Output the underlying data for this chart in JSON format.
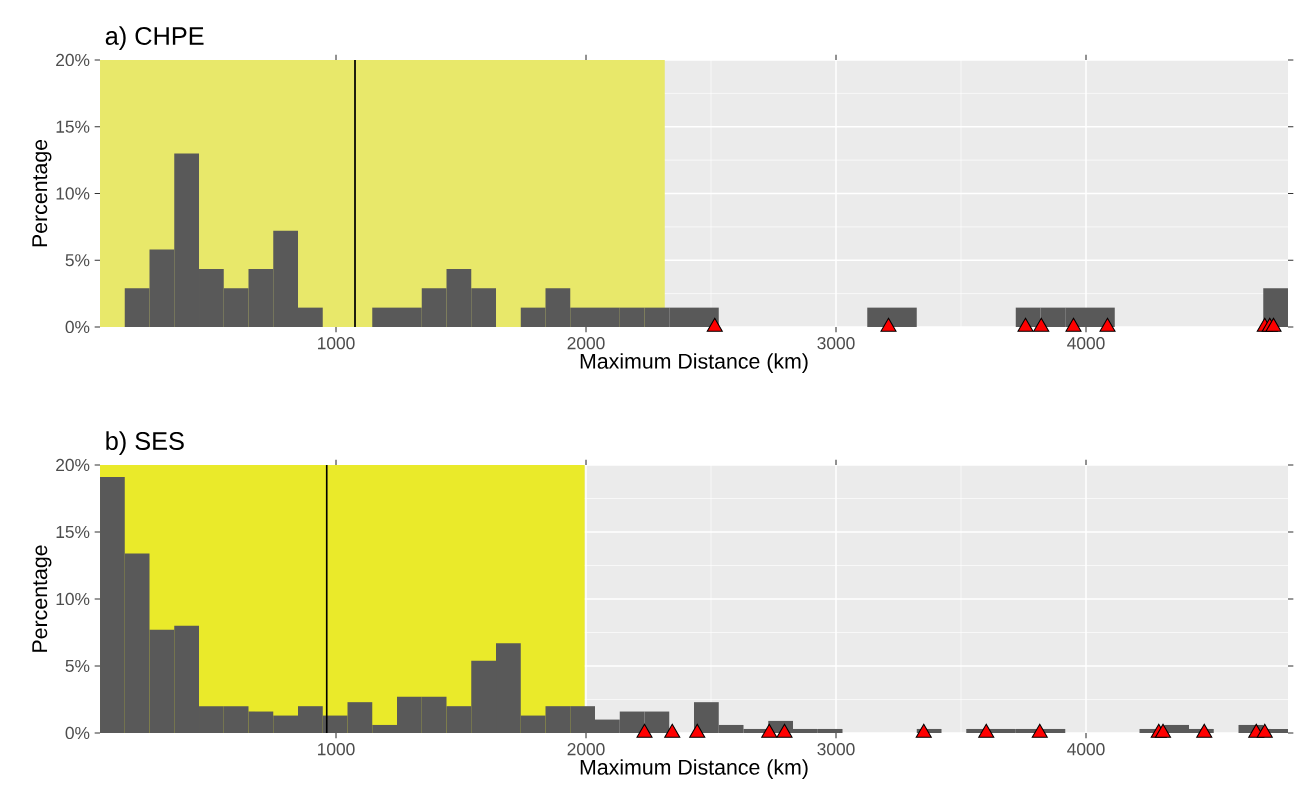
{
  "chart_data": [
    {
      "type": "histogram",
      "title": "a) CHPE",
      "xlabel": "Maximum Distance (km)",
      "ylabel": "Percentage",
      "color": "#595959",
      "bins": [
        56,
        155,
        254,
        353,
        452,
        551,
        650,
        749,
        848,
        947,
        1046,
        1145,
        1244,
        1343,
        1442,
        1541,
        1640,
        1739,
        1838,
        1937,
        2036,
        2135,
        2234,
        2333,
        2432,
        2531,
        2630,
        2729,
        2828,
        2927,
        3026,
        3125,
        3224,
        3323,
        3422,
        3521,
        3620,
        3719,
        3818,
        3917,
        4016,
        4115,
        4214,
        4313,
        4412,
        4511,
        4610,
        4709,
        4808
      ],
      "values": [
        0,
        2.9,
        5.8,
        13,
        4.35,
        2.9,
        4.35,
        7.2,
        1.45,
        0,
        0,
        1.45,
        1.45,
        2.9,
        4.35,
        2.9,
        0,
        1.45,
        2.9,
        1.45,
        1.45,
        1.45,
        1.45,
        1.45,
        1.45,
        0,
        0,
        0,
        0,
        0,
        0,
        1.45,
        1.45,
        0,
        0,
        0,
        0,
        1.45,
        1.45,
        1.45,
        1.45,
        0,
        0,
        0,
        0,
        0,
        0,
        2.9
      ],
      "series": [
        {
          "type": "scatter",
          "color": "#ff0000",
          "x": [
            2515,
            3210,
            3758,
            3821,
            3950,
            4086,
            4715,
            4735,
            4750
          ],
          "values": [
            0,
            0,
            0,
            0,
            0,
            0,
            0,
            0,
            0
          ]
        }
      ],
      "marker": "triangle",
      "ref_lines": [
        {
          "axis": "x",
          "value": 1076,
          "color": "#000000"
        }
      ],
      "bands": [
        {
          "axis": "x",
          "from": 56,
          "to": 2315,
          "color": "#e8e86a"
        }
      ],
      "xlim": [
        56,
        4808
      ],
      "xticks": [
        1000,
        2000,
        3000,
        4000
      ],
      "ylim": [
        0,
        20
      ],
      "yticks": [
        {
          "value": 0,
          "label": "0%"
        },
        {
          "value": 5,
          "label": "5%"
        },
        {
          "value": 10,
          "label": "10%"
        },
        {
          "value": 15,
          "label": "15%"
        },
        {
          "value": 20,
          "label": "20%"
        }
      ],
      "grid": true
    },
    {
      "type": "histogram",
      "title": "b) SES",
      "xlabel": "Maximum Distance (km)",
      "ylabel": "Percentage",
      "color": "#595959",
      "bins": [
        56,
        155,
        254,
        353,
        452,
        551,
        650,
        749,
        848,
        947,
        1046,
        1145,
        1244,
        1343,
        1442,
        1541,
        1640,
        1739,
        1838,
        1937,
        2036,
        2135,
        2234,
        2333,
        2432,
        2531,
        2630,
        2729,
        2828,
        2927,
        3026,
        3125,
        3224,
        3323,
        3422,
        3521,
        3620,
        3719,
        3818,
        3917,
        4016,
        4115,
        4214,
        4313,
        4412,
        4511,
        4610,
        4709,
        4808
      ],
      "values": [
        19.1,
        13.4,
        7.7,
        8.0,
        2.0,
        2.0,
        1.6,
        1.3,
        2.0,
        1.3,
        2.3,
        0.6,
        2.7,
        2.7,
        2.0,
        5.4,
        6.7,
        1.3,
        2.0,
        2.0,
        1.0,
        1.6,
        1.6,
        0,
        2.3,
        0.6,
        0.3,
        0.9,
        0.3,
        0.3,
        0,
        0,
        0,
        0.3,
        0,
        0.3,
        0.3,
        0.3,
        0.3,
        0,
        0,
        0,
        0.3,
        0.6,
        0.3,
        0,
        0.6,
        0.3
      ],
      "series": [
        {
          "type": "scatter",
          "color": "#ff0000",
          "x": [
            2234,
            2345,
            2445,
            2733,
            2794,
            3351,
            3601,
            3815,
            4291,
            4308,
            4473,
            4681,
            4715
          ],
          "values": [
            0,
            0,
            0,
            0,
            0,
            0,
            0,
            0,
            0,
            0,
            0,
            0,
            0
          ]
        }
      ],
      "marker": "triangle",
      "ref_lines": [
        {
          "axis": "x",
          "value": 963,
          "color": "#000000"
        }
      ],
      "bands": [
        {
          "axis": "x",
          "from": 56,
          "to": 1995,
          "color": "#eaea2a"
        }
      ],
      "xlim": [
        56,
        4808
      ],
      "xticks": [
        1000,
        2000,
        3000,
        4000
      ],
      "ylim": [
        0,
        20
      ],
      "yticks": [
        {
          "value": 0,
          "label": "0%"
        },
        {
          "value": 5,
          "label": "5%"
        },
        {
          "value": 10,
          "label": "10%"
        },
        {
          "value": 15,
          "label": "15%"
        },
        {
          "value": 20,
          "label": "20%"
        }
      ],
      "grid": true
    }
  ]
}
